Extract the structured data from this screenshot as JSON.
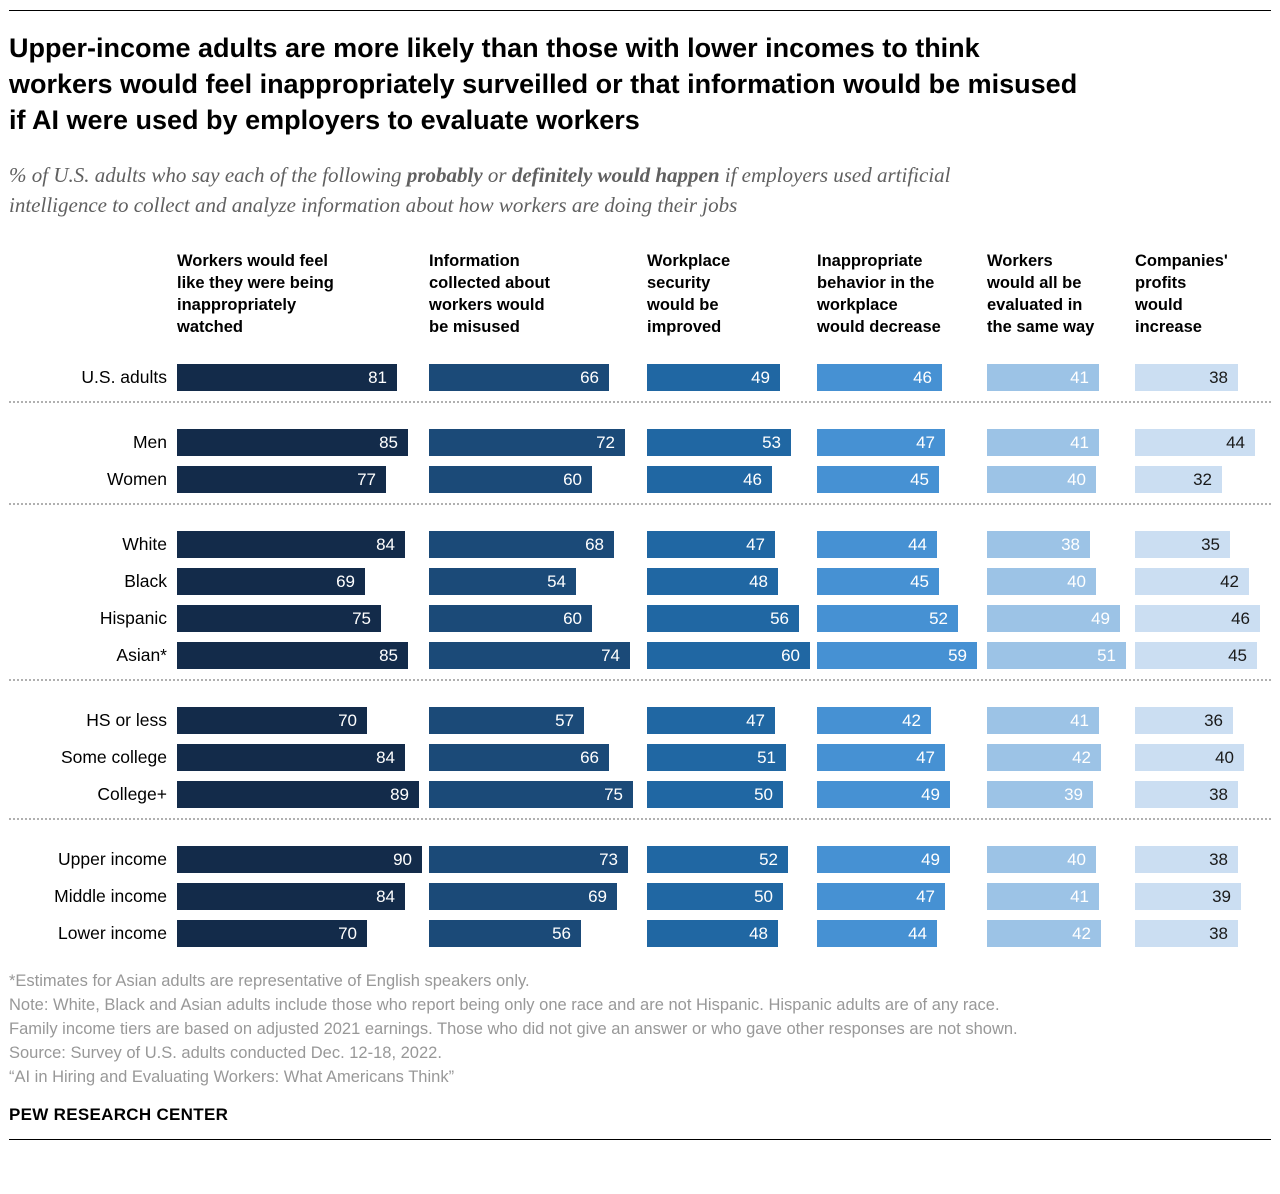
{
  "header": {
    "title_lines": [
      "Upper-income adults are more likely than those with lower incomes to think",
      "workers would feel inappropriately surveilled or that information would be misused",
      "if AI were used by employers to evaluate workers"
    ],
    "subtitle": {
      "line1_part1": "% of U.S. adults who say each of the following ",
      "line1_bold1": "probably",
      "line1_part2": " or ",
      "line1_bold2": "definitely would happen",
      "line1_part3": " if employers used artificial",
      "line2": "intelligence to collect and analyze information about how workers are doing their jobs"
    }
  },
  "chart_data": {
    "type": "bar",
    "unit": "%",
    "title": "Upper-income adults are more likely than those with lower incomes to think workers would feel inappropriately surveilled or that information would be misused if AI were used by employers to evaluate workers",
    "subtitle": "% of U.S. adults who say each of the following probably or definitely would happen if employers used artificial intelligence to collect and analyze information about how workers are doing their jobs",
    "value_range": [
      0,
      100
    ],
    "columns": [
      {
        "label": "Workers would feel like they were being inappropriately watched",
        "lines": [
          "Workers would feel",
          "like they were being",
          "inappropriately",
          "watched"
        ],
        "color": "#132b4a",
        "text_color": "#ffffff"
      },
      {
        "label": "Information collected about workers would be misused",
        "lines": [
          "Information",
          "collected about",
          "workers would",
          "be misused"
        ],
        "color": "#1b4a78",
        "text_color": "#ffffff"
      },
      {
        "label": "Workplace security would be improved",
        "lines": [
          "Workplace",
          "security",
          "would be",
          "improved"
        ],
        "color": "#2067a3",
        "text_color": "#ffffff"
      },
      {
        "label": "Inappropriate behavior in the workplace would decrease",
        "lines": [
          "Inappropriate",
          "behavior in the",
          "workplace",
          "would decrease"
        ],
        "color": "#4691d3",
        "text_color": "#ffffff"
      },
      {
        "label": "Workers would all be evaluated in the same way",
        "lines": [
          "Workers",
          "would all be",
          "evaluated in",
          "the same way"
        ],
        "color": "#9cc3e6",
        "text_color": "#ffffff"
      },
      {
        "label": "Companies' profits would increase",
        "lines": [
          "Companies'",
          "profits",
          "would",
          "increase"
        ],
        "color": "#cbdef2",
        "text_color": "#1a1a1a"
      }
    ],
    "groups": [
      {
        "name": "overall",
        "rows": [
          {
            "label": "U.S. adults",
            "values": [
              81,
              66,
              49,
              46,
              41,
              38
            ]
          }
        ]
      },
      {
        "name": "gender",
        "rows": [
          {
            "label": "Men",
            "values": [
              85,
              72,
              53,
              47,
              41,
              44
            ]
          },
          {
            "label": "Women",
            "values": [
              77,
              60,
              46,
              45,
              40,
              32
            ]
          }
        ]
      },
      {
        "name": "race-ethnicity",
        "rows": [
          {
            "label": "White",
            "values": [
              84,
              68,
              47,
              44,
              38,
              35
            ]
          },
          {
            "label": "Black",
            "values": [
              69,
              54,
              48,
              45,
              40,
              42
            ]
          },
          {
            "label": "Hispanic",
            "values": [
              75,
              60,
              56,
              52,
              49,
              46
            ]
          },
          {
            "label": "Asian*",
            "values": [
              85,
              74,
              60,
              59,
              51,
              45
            ]
          }
        ]
      },
      {
        "name": "education",
        "rows": [
          {
            "label": "HS or less",
            "values": [
              70,
              57,
              47,
              42,
              41,
              36
            ]
          },
          {
            "label": "Some college",
            "values": [
              84,
              66,
              51,
              47,
              42,
              40
            ]
          },
          {
            "label": "College+",
            "values": [
              89,
              75,
              50,
              49,
              39,
              38
            ]
          }
        ]
      },
      {
        "name": "income",
        "rows": [
          {
            "label": "Upper income",
            "values": [
              90,
              73,
              52,
              49,
              40,
              38
            ]
          },
          {
            "label": "Middle income",
            "values": [
              84,
              69,
              50,
              47,
              41,
              39
            ]
          },
          {
            "label": "Lower income",
            "values": [
              70,
              56,
              48,
              44,
              42,
              38
            ]
          }
        ]
      }
    ]
  },
  "notes": {
    "lines": [
      "*Estimates for Asian adults are representative of English speakers only.",
      "Note: White, Black and Asian adults include those who report being only one race and are not Hispanic. Hispanic adults are of any race.",
      "Family income tiers are based on adjusted 2021 earnings. Those who did not give an answer or who gave other responses are not shown.",
      "Source: Survey of U.S. adults conducted Dec. 12-18, 2022.",
      "“AI in Hiring and Evaluating Workers: What Americans Think”"
    ]
  },
  "brand": "PEW RESEARCH CENTER"
}
